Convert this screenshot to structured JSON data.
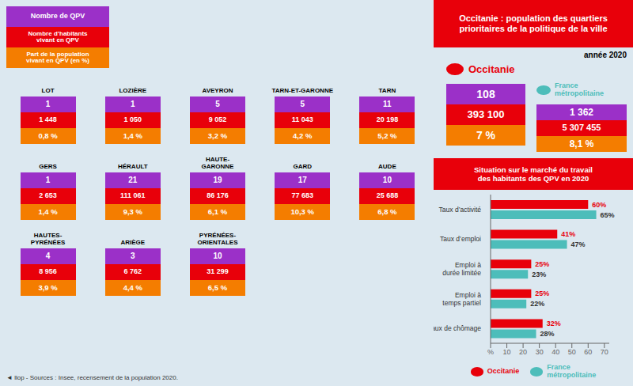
{
  "chart_data": {
    "type": "bar",
    "orientation": "horizontal",
    "title": "Occitanie : population des quartiers\nprioritaires de la politique de la ville",
    "subtitle": "Situation sur le marché du travail\ndes habitants des QPV en 2020",
    "categories": [
      "Taux d’activité",
      "Taux d’emploi",
      "Emploi à\ndurée limitée",
      "Emploi à\ntemps partiel",
      "Taux de chômage"
    ],
    "series": [
      {
        "name": "Occitanie",
        "color": "#e8000a",
        "values": [
          60,
          41,
          25,
          25,
          32
        ],
        "value_labels": [
          "60%",
          "41%",
          "25%",
          "25%",
          "32%"
        ]
      },
      {
        "name": "France\nmétropolitaine",
        "color": "#4dbdba",
        "values": [
          65,
          47,
          23,
          22,
          28
        ],
        "value_labels": [
          "65%",
          "47%",
          "23%",
          "22%",
          "28%"
        ]
      }
    ],
    "xlim": [
      0,
      73
    ],
    "xticks": [
      {
        "value": 0,
        "label": "%"
      },
      10,
      20,
      30,
      40,
      50,
      60,
      70
    ],
    "data_labels": true,
    "grid": false,
    "legend": "bottom",
    "annotations": [
      "année 2020",
      "Nombre de QPV",
      "Nombre d’habitants\nvivant en QPV",
      "Part de la population\nvivant en QPV (en %)",
      "Occitanie",
      "108",
      "393 100",
      "7 %",
      "France\nmétropolitaine",
      "1 362",
      "5 307 455",
      "8,1 %",
      "LOT",
      "1",
      "1 448",
      "0,8 %",
      "LOZIÈRE",
      "1",
      "1 050",
      "1,4 %",
      "AVEYRON",
      "5",
      "9 052",
      "3,2 %",
      "TARN-ET-GARONNE",
      "5",
      "11 043",
      "4,2 %",
      "TARN",
      "11",
      "20 198",
      "5,2 %",
      "GERS",
      "1",
      "2 653",
      "1,4 %",
      "HÉRAULT",
      "21",
      "111 061",
      "9,3 %",
      "HAUTE-\nGARONNE",
      "19",
      "86 176",
      "6,1 %",
      "GARD",
      "17",
      "77 683",
      "10,3 %",
      "AUDE",
      "10",
      "25 688",
      "6,8 %",
      "HAUTES-\nPYRÉNÉES",
      "4",
      "8 956",
      "3,9 %",
      "ARIÈGE",
      "3",
      "6 762",
      "4,4 %",
      "PYRÉNÉES-\nORIENTALES",
      "10",
      "31 299",
      "6,5 %",
      "◄ llop - Sources : Insee, recensement de la population 2020."
    ]
  }
}
